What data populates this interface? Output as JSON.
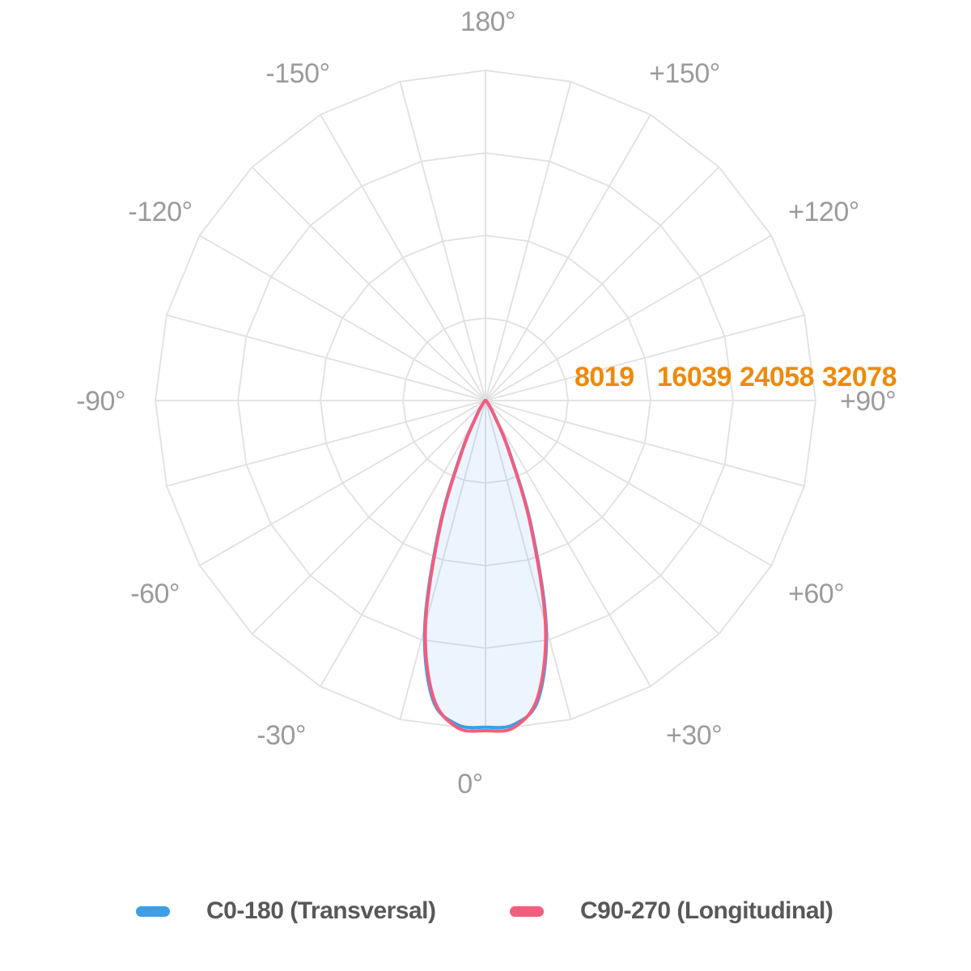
{
  "chart_data": {
    "type": "line",
    "subtype": "polar-photometric-distribution",
    "title": "",
    "angle_axis": {
      "unit": "degrees",
      "zero_position": "bottom",
      "labels": [
        {
          "angle": 180,
          "text": "180°"
        },
        {
          "angle": -150,
          "text": "-150°"
        },
        {
          "angle": 150,
          "text": "+150°"
        },
        {
          "angle": -120,
          "text": "-120°"
        },
        {
          "angle": 120,
          "text": "+120°"
        },
        {
          "angle": -90,
          "text": "-90°"
        },
        {
          "angle": 90,
          "text": "+90°"
        },
        {
          "angle": -60,
          "text": "-60°"
        },
        {
          "angle": 60,
          "text": "+60°"
        },
        {
          "angle": -30,
          "text": "-30°"
        },
        {
          "angle": 30,
          "text": "+30°"
        },
        {
          "angle": 0,
          "text": "0°"
        }
      ],
      "grid_step_deg": 15
    },
    "radial_axis": {
      "min": 0,
      "max": 32078,
      "ticks": [
        {
          "value": 8019,
          "text": "8019"
        },
        {
          "value": 16039,
          "text": "16039"
        },
        {
          "value": 24058,
          "text": "24058"
        },
        {
          "value": 32078,
          "text": "32078"
        }
      ]
    },
    "series": [
      {
        "name": "C0-180 (Transversal)",
        "color": "#3D9EE8",
        "fill": "rgba(66,160,232,0.10)",
        "angles": [
          -90,
          -85,
          -80,
          -75,
          -70,
          -65,
          -60,
          -55,
          -50,
          -45,
          -40,
          -35,
          -30,
          -25,
          -20,
          -15,
          -10,
          -5,
          0,
          5,
          10,
          15,
          20,
          25,
          30,
          35,
          40,
          45,
          50,
          55,
          60,
          65,
          70,
          75,
          80,
          85,
          90
        ],
        "values": [
          10,
          20,
          30,
          40,
          50,
          60,
          80,
          100,
          150,
          250,
          400,
          800,
          1950,
          5500,
          13000,
          22800,
          29500,
          31600,
          31750,
          31600,
          29500,
          22800,
          13000,
          5500,
          1950,
          800,
          400,
          250,
          150,
          100,
          80,
          60,
          50,
          40,
          30,
          20,
          10
        ]
      },
      {
        "name": "C90-270 (Longitudinal)",
        "color": "#F55C7D",
        "fill": "none",
        "angles": [
          -90,
          -85,
          -80,
          -75,
          -70,
          -65,
          -60,
          -55,
          -50,
          -45,
          -40,
          -35,
          -30,
          -25,
          -20,
          -15,
          -10,
          -5,
          0,
          5,
          10,
          15,
          20,
          25,
          30,
          35,
          40,
          45,
          50,
          55,
          60,
          65,
          70,
          75,
          80,
          85,
          90
        ],
        "values": [
          5,
          10,
          20,
          30,
          40,
          50,
          70,
          90,
          130,
          220,
          360,
          720,
          1780,
          5200,
          12700,
          22520,
          29250,
          31880,
          32078,
          31880,
          29250,
          22520,
          12700,
          5200,
          1780,
          720,
          360,
          220,
          130,
          90,
          70,
          50,
          40,
          30,
          20,
          10,
          5
        ]
      }
    ],
    "legend": [
      {
        "label": "C0-180 (Transversal)",
        "color": "#3D9EE8"
      },
      {
        "label": "C90-270 (Longitudinal)",
        "color": "#F55C7D"
      }
    ],
    "colors": {
      "grid": "#E0E0E0",
      "angle_label": "#9B9B9B",
      "radial_label": "#ED8A0D",
      "legend_text": "#58585A",
      "background": "#FFFFFF"
    },
    "layout_hints": {
      "grid_rings": 4,
      "grid_shape": "polygon-24",
      "legend_position": "bottom"
    }
  }
}
